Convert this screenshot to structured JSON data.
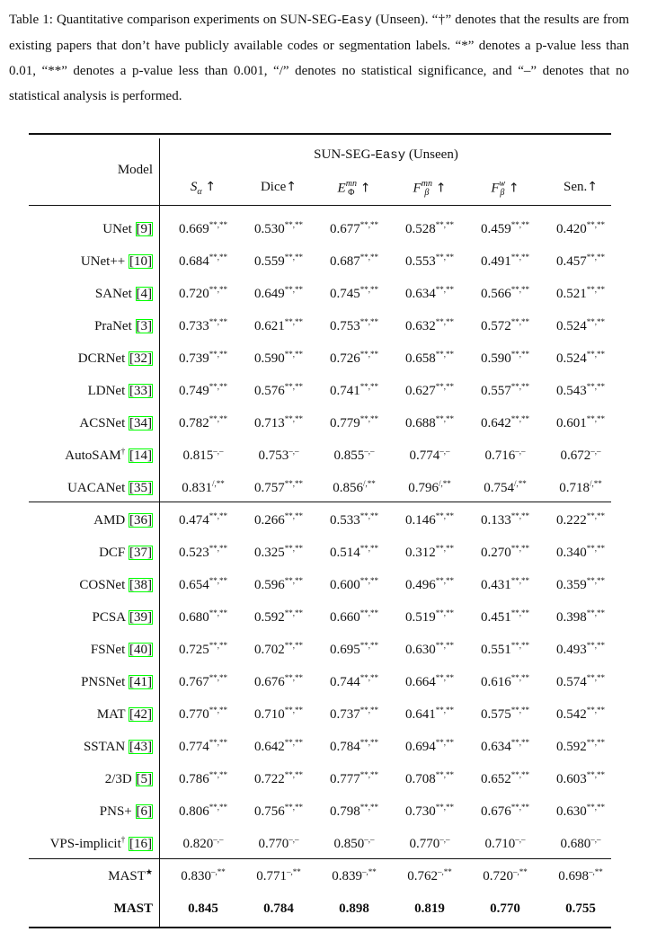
{
  "caption": {
    "label": "Table 1:",
    "text_a": " Quantitative comparison experiments on SUN-SEG-",
    "mono": "Easy",
    "text_b": " (Unseen). “†” denotes that the results are from existing papers that don’t have publicly available codes or segmentation labels. “*” denotes a p-value less than 0.01, “**” denotes a p-value less than 0.001, “/” denotes no statistical significance, and “–” denotes that no statistical analysis is performed."
  },
  "table": {
    "group_header_a": "SUN-SEG-",
    "group_header_mono": "Easy",
    "group_header_b": " (Unseen)",
    "model_header": "Model",
    "columns": [
      "S_α ↑",
      "Dice↑",
      "E_Φ^mn ↑",
      "F_β^mn ↑",
      "F_β^w ↑",
      "Sen.↑"
    ],
    "rows": [
      {
        "name": "UNet",
        "ref": "9",
        "vals": [
          "0.669",
          "0.530",
          "0.677",
          "0.528",
          "0.459",
          "0.420"
        ],
        "sups": [
          "**,**",
          "**,**",
          "**,**",
          "**,**",
          "**,**",
          "**,**"
        ]
      },
      {
        "name": "UNet++",
        "ref": "10",
        "vals": [
          "0.684",
          "0.559",
          "0.687",
          "0.553",
          "0.491",
          "0.457"
        ],
        "sups": [
          "**,**",
          "**,**",
          "**,**",
          "**,**",
          "**,**",
          "**,**"
        ]
      },
      {
        "name": "SANet",
        "ref": "4",
        "vals": [
          "0.720",
          "0.649",
          "0.745",
          "0.634",
          "0.566",
          "0.521"
        ],
        "sups": [
          "**,**",
          "**,**",
          "**,**",
          "**,**",
          "**,**",
          "**,**"
        ]
      },
      {
        "name": "PraNet",
        "ref": "3",
        "vals": [
          "0.733",
          "0.621",
          "0.753",
          "0.632",
          "0.572",
          "0.524"
        ],
        "sups": [
          "**,**",
          "**,**",
          "**,**",
          "**,**",
          "**,**",
          "**,**"
        ]
      },
      {
        "name": "DCRNet",
        "ref": "32",
        "vals": [
          "0.739",
          "0.590",
          "0.726",
          "0.658",
          "0.590",
          "0.524"
        ],
        "sups": [
          "**,**",
          "**,**",
          "**,**",
          "**,**",
          "**,**",
          "**,**"
        ]
      },
      {
        "name": "LDNet",
        "ref": "33",
        "vals": [
          "0.749",
          "0.576",
          "0.741",
          "0.627",
          "0.557",
          "0.543"
        ],
        "sups": [
          "**,**",
          "**,**",
          "**,**",
          "**,**",
          "**,**",
          "**,**"
        ]
      },
      {
        "name": "ACSNet",
        "ref": "34",
        "vals": [
          "0.782",
          "0.713",
          "0.779",
          "0.688",
          "0.642",
          "0.601"
        ],
        "sups": [
          "**,**",
          "**,**",
          "**,**",
          "**,**",
          "**,**",
          "**,**"
        ]
      },
      {
        "name": "AutoSAM†",
        "ref": "14",
        "vals": [
          "0.815",
          "0.753",
          "0.855",
          "0.774",
          "0.716",
          "0.672"
        ],
        "sups": [
          "–,–",
          "–,–",
          "–,–",
          "–,–",
          "–,–",
          "–,–"
        ]
      },
      {
        "name": "UACANet",
        "ref": "35",
        "vals": [
          "0.831",
          "0.757",
          "0.856",
          "0.796",
          "0.754",
          "0.718"
        ],
        "sups": [
          "/,**",
          "**,**",
          "/,**",
          "/,**",
          "/,**",
          "/,**"
        ]
      },
      {
        "name": "AMD",
        "ref": "36",
        "vals": [
          "0.474",
          "0.266",
          "0.533",
          "0.146",
          "0.133",
          "0.222"
        ],
        "sups": [
          "**,**",
          "**,**",
          "**,**",
          "**,**",
          "**,**",
          "**,**"
        ]
      },
      {
        "name": "DCF",
        "ref": "37",
        "vals": [
          "0.523",
          "0.325",
          "0.514",
          "0.312",
          "0.270",
          "0.340"
        ],
        "sups": [
          "**,**",
          "**,**",
          "**,**",
          "**,**",
          "**,**",
          "**,**"
        ]
      },
      {
        "name": "COSNet",
        "ref": "38",
        "vals": [
          "0.654",
          "0.596",
          "0.600",
          "0.496",
          "0.431",
          "0.359"
        ],
        "sups": [
          "**,**",
          "**,**",
          "**,**",
          "**,**",
          "**,**",
          "**,**"
        ]
      },
      {
        "name": "PCSA",
        "ref": "39",
        "vals": [
          "0.680",
          "0.592",
          "0.660",
          "0.519",
          "0.451",
          "0.398"
        ],
        "sups": [
          "**,**",
          "**,**",
          "**,**",
          "**,**",
          "**,**",
          "**,**"
        ]
      },
      {
        "name": "FSNet",
        "ref": "40",
        "vals": [
          "0.725",
          "0.702",
          "0.695",
          "0.630",
          "0.551",
          "0.493"
        ],
        "sups": [
          "**,**",
          "**,**",
          "**,**",
          "**,**",
          "**,**",
          "**,**"
        ]
      },
      {
        "name": "PNSNet",
        "ref": "41",
        "vals": [
          "0.767",
          "0.676",
          "0.744",
          "0.664",
          "0.616",
          "0.574"
        ],
        "sups": [
          "**,**",
          "**,**",
          "**,**",
          "**,**",
          "**,**",
          "**,**"
        ]
      },
      {
        "name": "MAT",
        "ref": "42",
        "vals": [
          "0.770",
          "0.710",
          "0.737",
          "0.641",
          "0.575",
          "0.542"
        ],
        "sups": [
          "**,**",
          "**,**",
          "**,**",
          "**,**",
          "**,**",
          "**,**"
        ]
      },
      {
        "name": "SSTAN",
        "ref": "43",
        "vals": [
          "0.774",
          "0.642",
          "0.784",
          "0.694",
          "0.634",
          "0.592"
        ],
        "sups": [
          "**,**",
          "**,**",
          "**,**",
          "**,**",
          "**,**",
          "**,**"
        ]
      },
      {
        "name": "2/3D",
        "ref": "5",
        "vals": [
          "0.786",
          "0.722",
          "0.777",
          "0.708",
          "0.652",
          "0.603"
        ],
        "sups": [
          "**,**",
          "**,**",
          "**,**",
          "**,**",
          "**,**",
          "**,**"
        ]
      },
      {
        "name": "PNS+",
        "ref": "6",
        "vals": [
          "0.806",
          "0.756",
          "0.798",
          "0.730",
          "0.676",
          "0.630"
        ],
        "sups": [
          "**,**",
          "**,**",
          "**,**",
          "**,**",
          "**,**",
          "**,**"
        ]
      },
      {
        "name": "VPS-implicit†",
        "ref": "16",
        "vals": [
          "0.820",
          "0.770",
          "0.850",
          "0.770",
          "0.710",
          "0.680"
        ],
        "sups": [
          "–,–",
          "–,–",
          "–,–",
          "–,–",
          "–,–",
          "–,–"
        ]
      },
      {
        "name": "MAST★",
        "ref": "",
        "vals": [
          "0.830",
          "0.771",
          "0.839",
          "0.762",
          "0.720",
          "0.698"
        ],
        "sups": [
          "–,**",
          "–,**",
          "–,**",
          "–,**",
          "–,**",
          "–,**"
        ]
      },
      {
        "name": "MAST",
        "ref": "",
        "vals": [
          "0.845",
          "0.784",
          "0.898",
          "0.819",
          "0.770",
          "0.755"
        ],
        "sups": [
          "",
          "",
          "",
          "",
          "",
          ""
        ],
        "bold": true
      }
    ]
  }
}
